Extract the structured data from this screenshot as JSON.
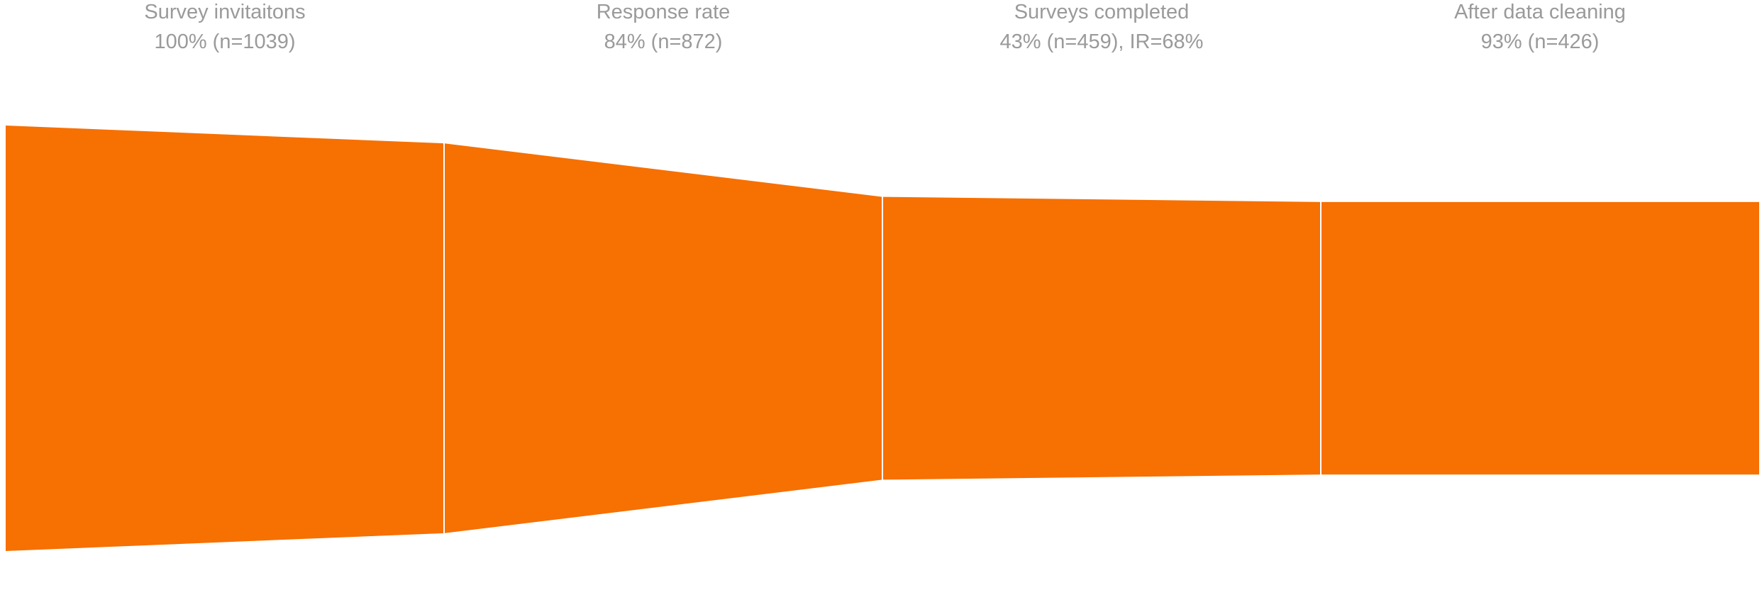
{
  "chart_data": {
    "type": "funnel",
    "stages": [
      {
        "name": "Survey invitaitons",
        "percent_label": "100% (n=1039)",
        "n": 1039
      },
      {
        "name": "Response rate",
        "percent_label": "84% (n=872)",
        "n": 872
      },
      {
        "name": "Surveys completed",
        "percent_label": "43% (n=459), IR=68%",
        "n": 459
      },
      {
        "name": "After data cleaning",
        "percent_label": "93% (n=426)",
        "n": 426
      }
    ]
  },
  "colors": {
    "fill": "#f77002",
    "label": "#9a9a9a",
    "divider": "#ffffff"
  }
}
